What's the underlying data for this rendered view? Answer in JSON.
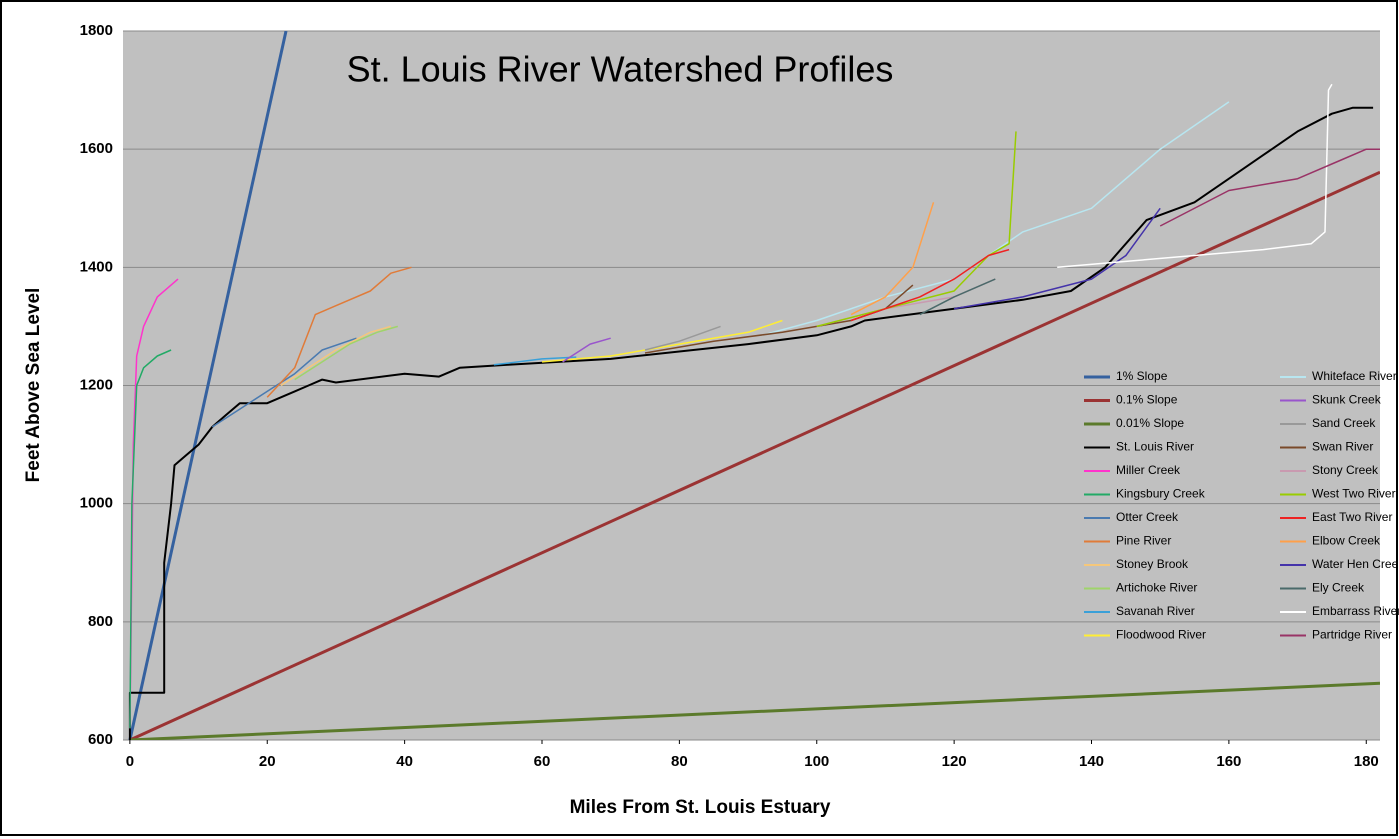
{
  "chart_data": {
    "type": "line",
    "title": "St. Louis River Watershed Profiles",
    "xlabel": "Miles From St. Louis Estuary",
    "ylabel": "Feet Above Sea Level",
    "xlim": [
      -1,
      182
    ],
    "ylim": [
      600,
      1800
    ],
    "xticks": [
      0,
      20,
      40,
      60,
      80,
      100,
      120,
      140,
      160,
      180
    ],
    "yticks": [
      600,
      800,
      1000,
      1200,
      1400,
      1600,
      1800
    ],
    "grid": true,
    "legend": "lower right",
    "series": [
      {
        "name": "1% Slope",
        "color": "#35619f",
        "width": 3,
        "x": [
          0,
          22.73
        ],
        "values": [
          600,
          1800
        ]
      },
      {
        "name": "0.1% Slope",
        "color": "#9b3333",
        "width": 3,
        "x": [
          0,
          182
        ],
        "values": [
          600,
          1561
        ]
      },
      {
        "name": "0.01% Slope",
        "color": "#5b7a2b",
        "width": 3,
        "x": [
          0,
          182
        ],
        "values": [
          600,
          696
        ]
      },
      {
        "name": "St. Louis River",
        "color": "#000000",
        "width": 2,
        "x": [
          0,
          0,
          5,
          5,
          6,
          6.5,
          8,
          10,
          12,
          14,
          16,
          20,
          24,
          26,
          28,
          30,
          40,
          45,
          48,
          55,
          70,
          90,
          100,
          105,
          107,
          120,
          130,
          137,
          142,
          148,
          155,
          160,
          165,
          170,
          175,
          178,
          181
        ],
        "values": [
          600,
          680,
          680,
          900,
          1000,
          1065,
          1080,
          1100,
          1130,
          1150,
          1170,
          1170,
          1190,
          1200,
          1210,
          1205,
          1220,
          1215,
          1230,
          1235,
          1245,
          1270,
          1285,
          1300,
          1310,
          1330,
          1345,
          1360,
          1400,
          1480,
          1510,
          1550,
          1590,
          1630,
          1660,
          1670,
          1670
        ]
      },
      {
        "name": "Miller Creek",
        "color": "#ff33cc",
        "width": 1.5,
        "x": [
          0,
          0.5,
          1,
          2,
          4,
          7
        ],
        "values": [
          620,
          1100,
          1250,
          1300,
          1350,
          1380
        ]
      },
      {
        "name": "Kingsbury Creek",
        "color": "#22aa66",
        "width": 1.5,
        "x": [
          0,
          0.3,
          1,
          2,
          4,
          6
        ],
        "values": [
          620,
          1000,
          1200,
          1230,
          1250,
          1260
        ]
      },
      {
        "name": "Otter Creek",
        "color": "#4a7ab0",
        "width": 1.5,
        "x": [
          12,
          16,
          20,
          24,
          28,
          33
        ],
        "values": [
          1130,
          1160,
          1190,
          1220,
          1260,
          1280
        ]
      },
      {
        "name": "Pine River",
        "color": "#e07b39",
        "width": 1.5,
        "x": [
          20,
          24,
          27,
          30,
          35,
          38,
          41
        ],
        "values": [
          1180,
          1230,
          1320,
          1335,
          1360,
          1390,
          1400
        ]
      },
      {
        "name": "Stoney Brook",
        "color": "#f5c77a",
        "width": 1.5,
        "x": [
          22,
          26,
          30,
          35,
          38
        ],
        "values": [
          1200,
          1230,
          1260,
          1290,
          1300
        ]
      },
      {
        "name": "Artichoke River",
        "color": "#9fd46a",
        "width": 1.5,
        "x": [
          24,
          28,
          32,
          36,
          39
        ],
        "values": [
          1210,
          1240,
          1270,
          1290,
          1300
        ]
      },
      {
        "name": "Savanah River",
        "color": "#3aa0d8",
        "width": 1.5,
        "x": [
          53,
          60,
          65
        ],
        "values": [
          1235,
          1245,
          1248
        ]
      },
      {
        "name": "Floodwood River",
        "color": "#ffee33",
        "width": 1.5,
        "x": [
          60,
          70,
          80,
          90,
          95
        ],
        "values": [
          1240,
          1250,
          1270,
          1290,
          1310
        ]
      },
      {
        "name": "Whiteface River",
        "color": "#b8e6f0",
        "width": 1.5,
        "x": [
          92,
          100,
          110,
          120,
          130,
          140,
          150,
          160
        ],
        "values": [
          1285,
          1310,
          1350,
          1380,
          1460,
          1500,
          1600,
          1680
        ]
      },
      {
        "name": "Skunk Creek",
        "color": "#9955cc",
        "width": 1.5,
        "x": [
          63,
          67,
          70
        ],
        "values": [
          1240,
          1270,
          1280
        ]
      },
      {
        "name": "Sand Creek",
        "color": "#999999",
        "width": 1.5,
        "x": [
          75,
          80,
          86
        ],
        "values": [
          1260,
          1275,
          1300
        ]
      },
      {
        "name": "Swan River",
        "color": "#7a4a2a",
        "width": 1.5,
        "x": [
          75,
          85,
          95,
          105,
          110,
          114
        ],
        "values": [
          1255,
          1275,
          1290,
          1310,
          1330,
          1370
        ]
      },
      {
        "name": "Stony Creek",
        "color": "#c99ab0",
        "width": 1.5,
        "x": [
          100,
          110,
          120,
          126
        ],
        "values": [
          1300,
          1330,
          1350,
          1380
        ]
      },
      {
        "name": "West Two River",
        "color": "#99cc00",
        "width": 1.5,
        "x": [
          100,
          110,
          120,
          125,
          128,
          129
        ],
        "values": [
          1300,
          1330,
          1360,
          1420,
          1440,
          1630
        ]
      },
      {
        "name": "East Two River",
        "color": "#ee2222",
        "width": 1.5,
        "x": [
          105,
          115,
          120,
          125,
          128
        ],
        "values": [
          1310,
          1350,
          1380,
          1420,
          1430
        ]
      },
      {
        "name": "Elbow Creek",
        "color": "#ffa04a",
        "width": 1.5,
        "x": [
          105,
          110,
          114,
          117
        ],
        "values": [
          1320,
          1350,
          1400,
          1510
        ]
      },
      {
        "name": "Water Hen Creek",
        "color": "#4433aa",
        "width": 1.5,
        "x": [
          120,
          130,
          140,
          145,
          150
        ],
        "values": [
          1330,
          1350,
          1380,
          1420,
          1500
        ]
      },
      {
        "name": "Ely Creek",
        "color": "#4a6a6a",
        "width": 1.5,
        "x": [
          115,
          120,
          126
        ],
        "values": [
          1320,
          1350,
          1380
        ]
      },
      {
        "name": "Embarrass River",
        "color": "#ffffff",
        "width": 1.5,
        "x": [
          135,
          145,
          155,
          165,
          172,
          174,
          174.5,
          175
        ],
        "values": [
          1400,
          1410,
          1420,
          1430,
          1440,
          1460,
          1700,
          1710
        ]
      },
      {
        "name": "Partridge River",
        "color": "#993366",
        "width": 1.5,
        "x": [
          150,
          160,
          170,
          176,
          180,
          182
        ],
        "values": [
          1470,
          1530,
          1550,
          1580,
          1600,
          1600
        ]
      }
    ]
  }
}
